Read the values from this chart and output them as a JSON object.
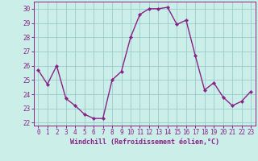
{
  "x": [
    0,
    1,
    2,
    3,
    4,
    5,
    6,
    7,
    8,
    9,
    10,
    11,
    12,
    13,
    14,
    15,
    16,
    17,
    18,
    19,
    20,
    21,
    22,
    23
  ],
  "y": [
    25.7,
    24.7,
    26.0,
    23.7,
    23.2,
    22.6,
    22.3,
    22.3,
    25.0,
    25.6,
    28.0,
    29.6,
    30.0,
    30.0,
    30.1,
    28.9,
    29.2,
    26.7,
    24.3,
    24.8,
    23.8,
    23.2,
    23.5,
    24.2
  ],
  "line_color": "#882288",
  "marker": "D",
  "marker_size": 2.2,
  "linewidth": 1.0,
  "xlabel": "Windchill (Refroidissement éolien,°C)",
  "xlabel_fontsize": 6.0,
  "xtick_labels": [
    "0",
    "1",
    "2",
    "3",
    "4",
    "5",
    "6",
    "7",
    "8",
    "9",
    "10",
    "11",
    "12",
    "13",
    "14",
    "15",
    "16",
    "17",
    "18",
    "19",
    "20",
    "21",
    "22",
    "23"
  ],
  "ytick_labels": [
    "22",
    "23",
    "24",
    "25",
    "26",
    "27",
    "28",
    "29",
    "30"
  ],
  "ylim": [
    21.8,
    30.5
  ],
  "xlim": [
    -0.5,
    23.5
  ],
  "background_color": "#cceee8",
  "grid_color": "#99cccc",
  "tick_fontsize": 5.5
}
